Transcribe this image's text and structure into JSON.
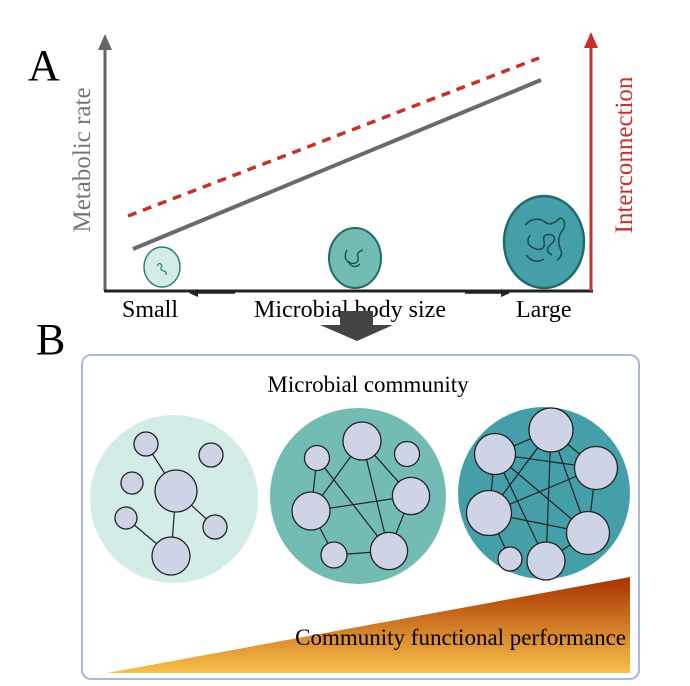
{
  "panel_a": {
    "letter": "A",
    "y_left_label": "Metabolic rate",
    "y_right_label": "Interconnection",
    "x_label": "Microbial body size",
    "x_small": "Small",
    "x_large": "Large",
    "colors": {
      "metabolic": "#666666",
      "interconnection": "#c8312a",
      "cell_small": "#d3ece8",
      "cell_medium": "#72bcb3",
      "cell_large": "#459fa8"
    }
  },
  "panel_b": {
    "letter": "B",
    "title": "Microbial community",
    "performance_label": "Community functional performance",
    "colors": {
      "community_small": "#d3ece8",
      "community_medium": "#72bcb3",
      "community_large": "#459fa8",
      "node": "#cfd3e6",
      "border": "#a9b8dc",
      "gradient_top": "#a83200",
      "gradient_bottom": "#f7c04a"
    }
  }
}
